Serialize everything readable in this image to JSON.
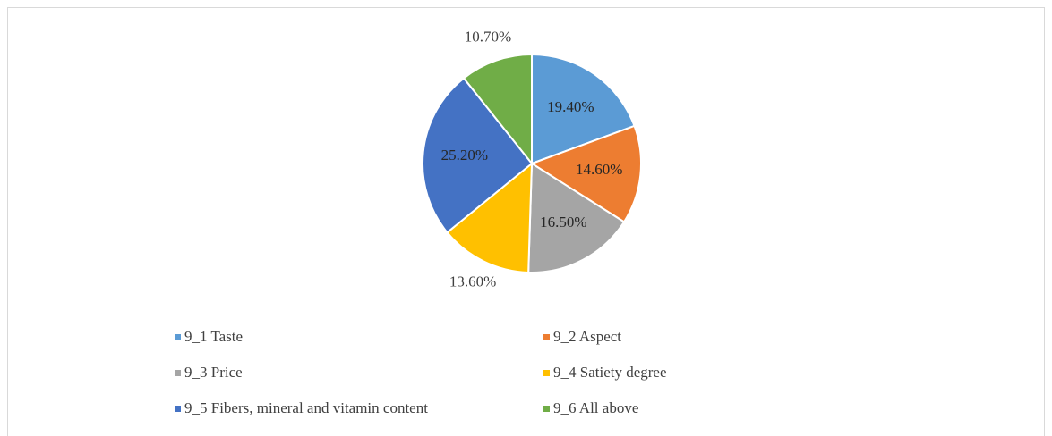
{
  "chart_data": {
    "type": "pie",
    "categories": [
      "9_1 Taste",
      "9_2 Aspect",
      "9_3 Price",
      "9_4 Satiety degree",
      "9_5 Fibers, mineral and vitamin content",
      "9_6 All above"
    ],
    "values": [
      19.4,
      14.6,
      16.5,
      13.6,
      25.2,
      10.7
    ],
    "value_labels": [
      "19.40%",
      "14.60%",
      "16.50%",
      "13.60%",
      "25.20%",
      "10.70%"
    ],
    "colors": [
      "#5b9bd5",
      "#ed7d31",
      "#a5a5a5",
      "#ffc000",
      "#4472c4",
      "#70ad47"
    ],
    "legend": "bottom"
  }
}
